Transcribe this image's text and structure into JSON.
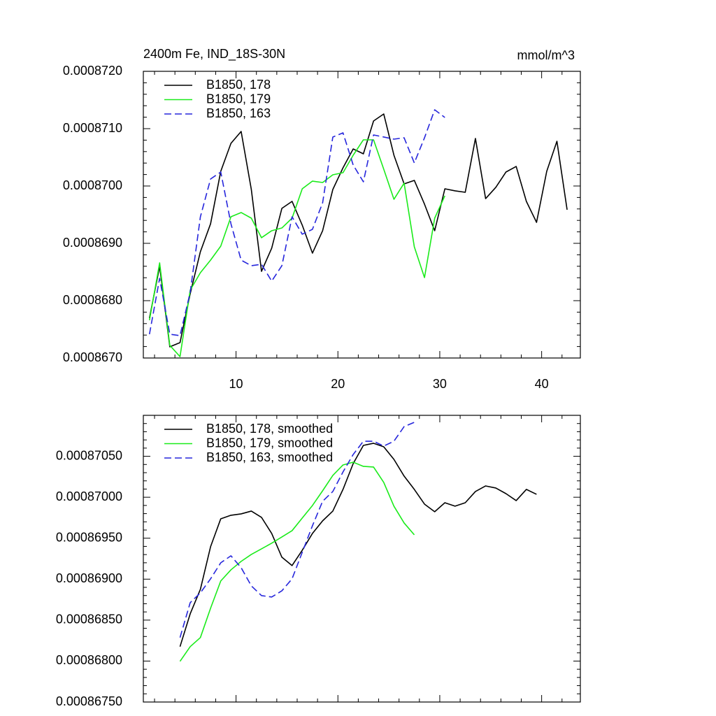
{
  "chart_data": [
    {
      "type": "line",
      "title": "2400m Fe, IND_18S-30N",
      "units": "mmol/m^3",
      "x": [
        1.5,
        2.5,
        3.5,
        4.5,
        5.5,
        6.5,
        7.5,
        8.5,
        9.5,
        10.5,
        11.5,
        12.5,
        13.5,
        14.5,
        15.5,
        16.5,
        17.5,
        18.5,
        19.5,
        20.5,
        21.5,
        22.5,
        23.5,
        24.5,
        25.5,
        26.5,
        27.5,
        28.5,
        29.5,
        30.5,
        31.5,
        32.5,
        33.5,
        34.5,
        35.5,
        36.5,
        37.5,
        38.5,
        39.5,
        40.5,
        41.5,
        42.5
      ],
      "series": [
        {
          "name": "B1850, 178",
          "color": "#000000",
          "style": "solid",
          "values": [
            0.000867695,
            0.000868598,
            0.000867195,
            0.000867268,
            0.000868122,
            0.000868854,
            0.000869341,
            0.000870256,
            0.000870744,
            0.000870951,
            0.000869939,
            0.000868512,
            0.000868915,
            0.00086961,
            0.000869732,
            0.000869317,
            0.000868829,
            0.00086922,
            0.000869939,
            0.000870317,
            0.000870646,
            0.000870561,
            0.000871134,
            0.000871256,
            0.000870537,
            0.000870037,
            0.000870098,
            0.000869683,
            0.00086922,
            0.000869951,
            0.000869915,
            0.00086989,
            0.000870829,
            0.00086978,
            0.000869976,
            0.000870244,
            0.000870341,
            0.000869732,
            0.000869366,
            0.000870256,
            0.00087078,
            0.000869585
          ]
        },
        {
          "name": "B1850, 179",
          "color": "#1aeb1a",
          "style": "solid",
          "values": [
            0.000867659,
            0.000868659,
            0.00086722,
            0.000867024,
            0.000868183,
            0.000868488,
            0.000868707,
            0.000868951,
            0.000869463,
            0.000869537,
            0.000869439,
            0.000869098,
            0.00086922,
            0.000869268,
            0.000869439,
            0.000869951,
            0.000870085,
            0.000870061,
            0.000870195,
            0.000870232,
            0.000870537,
            0.000870805,
            0.000870805,
            0.000870293,
            0.000869768,
            0.000870049,
            0.000868939,
            0.000868402,
            0.000869439,
            0.000869829,
            null,
            null,
            null,
            null,
            null,
            null,
            null,
            null,
            null,
            null,
            null,
            null
          ]
        },
        {
          "name": "B1850, 163",
          "color": "#2626dc",
          "style": "dashed",
          "values": [
            0.000867415,
            0.00086839,
            0.000867415,
            0.00086739,
            0.000868146,
            0.000869463,
            0.000870122,
            0.000870244,
            0.000869341,
            0.000868707,
            0.00086861,
            0.000868634,
            0.000868341,
            0.00086861,
            0.000869463,
            0.000869159,
            0.000869244,
            0.000869707,
            0.000870854,
            0.000870927,
            0.000870366,
            0.000870073,
            0.00087089,
            0.000870854,
            0.000870817,
            0.000870841,
            0.000870402,
            0.000870841,
            0.000871329,
            0.000871195,
            null,
            null,
            null,
            null,
            null,
            null,
            null,
            null,
            null,
            null,
            null,
            null
          ]
        }
      ],
      "xlim": [
        0.9,
        43.8
      ],
      "xticks": [
        10,
        20,
        30,
        40
      ],
      "xtick_labels": true,
      "ylim": [
        0.000867,
        0.000872
      ],
      "yticks": [
        {
          "value": 0.000867,
          "label": "0.0008670"
        },
        {
          "value": 0.000868,
          "label": "0.0008680"
        },
        {
          "value": 0.000869,
          "label": "0.0008690"
        },
        {
          "value": 0.00087,
          "label": "0.0008700"
        },
        {
          "value": 0.000871,
          "label": "0.0008710"
        },
        {
          "value": 0.000872,
          "label": "0.0008720"
        }
      ],
      "legend": "upper left",
      "grid": false
    },
    {
      "type": "line",
      "x": [
        4.5,
        5.5,
        6.5,
        7.5,
        8.5,
        9.5,
        10.5,
        11.5,
        12.5,
        13.5,
        14.5,
        15.5,
        16.5,
        17.5,
        18.5,
        19.5,
        20.5,
        21.5,
        22.5,
        23.5,
        24.5,
        25.5,
        26.5,
        27.5,
        28.5,
        29.5,
        30.5,
        31.5,
        32.5,
        33.5,
        34.5,
        35.5,
        36.5,
        37.5,
        38.5,
        39.5
      ],
      "series": [
        {
          "name": "B1850, 178, smoothed",
          "color": "#000000",
          "style": "solid",
          "values": [
            0.000868176,
            0.000868577,
            0.000868876,
            0.000869396,
            0.000869737,
            0.00086978,
            0.000869797,
            0.000869831,
            0.000869754,
            0.000869558,
            0.000869268,
            0.000869166,
            0.000869353,
            0.000869558,
            0.000869712,
            0.000869831,
            0.000870096,
            0.000870411,
            0.000870633,
            0.000870659,
            0.000870616,
            0.000870462,
            0.000870258,
            0.000870096,
            0.000869916,
            0.000869823,
            0.000869933,
            0.000869891,
            0.000869933,
            0.00087007,
            0.000870138,
            0.000870113,
            0.000870044,
            0.000869959,
            0.000870096,
            0.000870036
          ]
        },
        {
          "name": "B1850, 179, smoothed",
          "color": "#1aeb1a",
          "style": "solid",
          "values": [
            0.000867997,
            0.000868176,
            0.000868287,
            0.000868645,
            0.000868978,
            0.000869114,
            0.000869217,
            0.000869302,
            0.00086937,
            0.000869439,
            0.000869515,
            0.000869592,
            0.000869746,
            0.000869899,
            0.000870079,
            0.000870266,
            0.000870394,
            0.000870428,
            0.000870377,
            0.000870369,
            0.000870181,
            0.000869891,
            0.000869686,
            0.000869541,
            null,
            null,
            null,
            null,
            null,
            null,
            null,
            null,
            null,
            null,
            null,
            null
          ]
        },
        {
          "name": "B1850, 163, smoothed",
          "color": "#2626dc",
          "style": "dashed",
          "values": [
            0.000868287,
            0.000868713,
            0.000868833,
            0.000869004,
            0.0008692,
            0.000869285,
            0.00086914,
            0.000868918,
            0.000868799,
            0.000868782,
            0.000868858,
            0.000869004,
            0.000869328,
            0.000869652,
            0.000869951,
            0.00087007,
            0.000870309,
            0.000870522,
            0.000870684,
            0.000870684,
            0.000870625,
            0.000870684,
            0.000870863,
            0.000870915,
            null,
            null,
            null,
            null,
            null,
            null,
            null,
            null,
            null,
            null,
            null,
            null
          ]
        }
      ],
      "xlim": [
        0.9,
        43.8
      ],
      "xticks": [
        10,
        20,
        30,
        40
      ],
      "xtick_labels": false,
      "ylim": [
        0.0008675,
        0.000871
      ],
      "yticks": [
        {
          "value": 0.0008675,
          "label": "0.00086750"
        },
        {
          "value": 0.000868,
          "label": "0.00086800"
        },
        {
          "value": 0.0008685,
          "label": "0.00086850"
        },
        {
          "value": 0.000869,
          "label": "0.00086900"
        },
        {
          "value": 0.0008695,
          "label": "0.00086950"
        },
        {
          "value": 0.00087,
          "label": "0.00087000"
        },
        {
          "value": 0.0008705,
          "label": "0.00087050"
        }
      ],
      "legend": "upper left",
      "grid": false
    }
  ]
}
